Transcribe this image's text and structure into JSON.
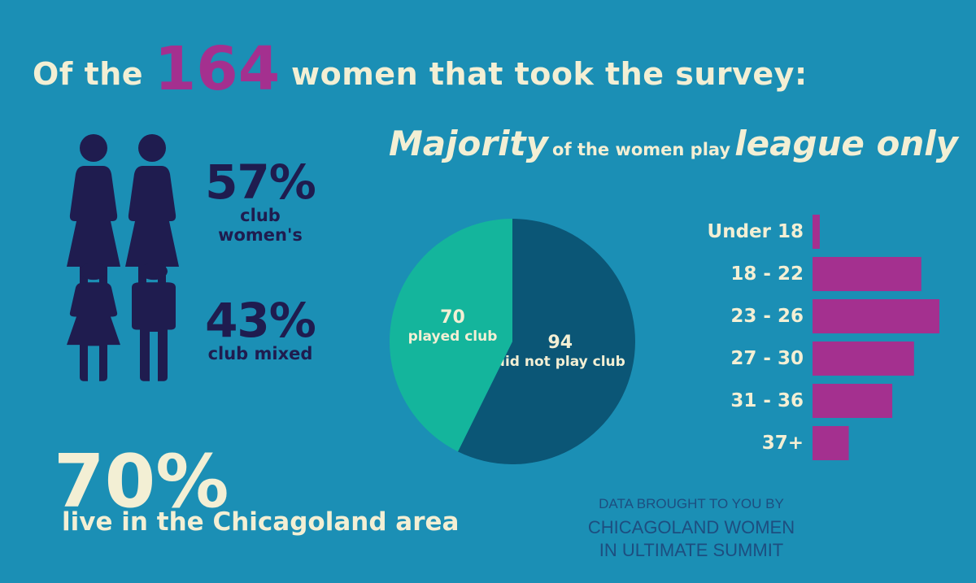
{
  "headline": {
    "pre": "Of the",
    "count": "164",
    "post": "women that took the survey:"
  },
  "subhead": {
    "lead": "Majority",
    "mid": "of the women play",
    "tail": "league only"
  },
  "stats": [
    {
      "value": "57%",
      "label": "club women's"
    },
    {
      "value": "43%",
      "label": "club mixed"
    }
  ],
  "location": {
    "value": "70%",
    "label": "live in the Chicagoland area"
  },
  "credit": {
    "line1": "DATA BROUGHT TO YOU BY",
    "line2": "CHICAGOLAND WOMEN",
    "line3": "IN ULTIMATE SUMMIT"
  },
  "colors": {
    "background": "#1b8fb5",
    "accent": "#a4308f",
    "cream": "#f3efd4",
    "navy": "#1f1c4f",
    "pie_played": "#14b59c",
    "pie_not_played": "#0b5676"
  },
  "icons": [
    "woman-figure-icon",
    "woman-figure-icon",
    "woman-figure-icon",
    "man-figure-icon"
  ],
  "chart_data": [
    {
      "type": "pie",
      "slices": [
        {
          "name": "played club",
          "value": 70
        },
        {
          "name": "did not play club",
          "value": 94
        }
      ]
    },
    {
      "type": "bar",
      "orientation": "horizontal",
      "categories": [
        "Under 18",
        "18 - 22",
        "23 - 26",
        "27 - 30",
        "31 - 36",
        "37+"
      ],
      "values": [
        2,
        30,
        35,
        28,
        22,
        10
      ]
    }
  ]
}
